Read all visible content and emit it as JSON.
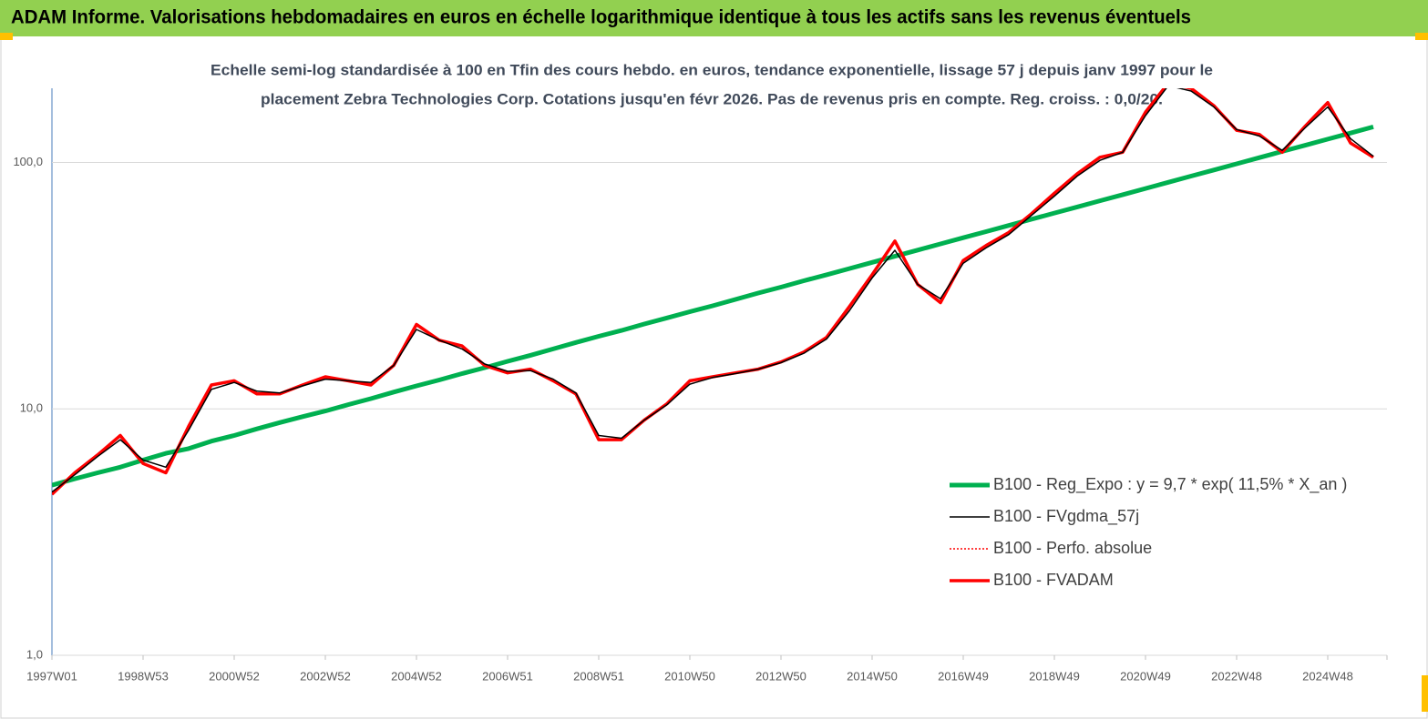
{
  "chart_data": {
    "type": "line",
    "title": "ADAM Informe. Valorisations hebdomadaires en euros en échelle logarithmique identique à tous les actifs sans les revenus éventuels",
    "subtitle": [
      "Echelle semi-log standardisée à 100 en Tfin des cours hebdo. en euros, tendance exponentielle, lissage 57 j depuis janv 1997 pour le",
      "placement Zebra Technologies Corp. Cotations jusqu'en févr 2026. Pas de revenus pris en compte. Reg. croiss. : 0,0/20."
    ],
    "log_scale": true,
    "legend": "lower right",
    "ylim": [
      1,
      200
    ],
    "yticks": [
      {
        "value": 1,
        "label": "1,0"
      },
      {
        "value": 10,
        "label": "10,0"
      },
      {
        "value": 100,
        "label": "100,0"
      }
    ],
    "categories": [
      "1997W01",
      null,
      null,
      null,
      "1998W53",
      null,
      null,
      null,
      "2000W52",
      null,
      null,
      null,
      "2002W52",
      null,
      null,
      null,
      "2004W52",
      null,
      null,
      null,
      "2006W51",
      null,
      null,
      null,
      "2008W51",
      null,
      null,
      null,
      "2010W50",
      null,
      null,
      null,
      "2012W50",
      null,
      null,
      null,
      "2014W50",
      null,
      null,
      null,
      "2016W49",
      null,
      null,
      null,
      "2018W49",
      null,
      null,
      null,
      "2020W49",
      null,
      null,
      null,
      "2022W48",
      null,
      null,
      null,
      "2024W48",
      null,
      null
    ],
    "series": [
      {
        "name": "B100 - Reg_Expo : y = 9,7 * exp( 11,5% *  X_an )",
        "color": "#00b050",
        "width": 5,
        "dash": false,
        "values": [
          4.9,
          5.2,
          5.5,
          5.8,
          6.2,
          6.6,
          6.9,
          7.4,
          7.8,
          8.3,
          8.8,
          9.3,
          9.8,
          10.4,
          11.0,
          11.7,
          12.4,
          13.1,
          13.9,
          14.7,
          15.6,
          16.5,
          17.5,
          18.6,
          19.7,
          20.8,
          22.1,
          23.4,
          24.8,
          26.2,
          27.8,
          29.5,
          31.2,
          33.1,
          35.0,
          37.1,
          39.3,
          41.6,
          44.1,
          46.7,
          49.5,
          52.4,
          55.5,
          58.8,
          62.3,
          66.0,
          69.9,
          74.0,
          78.4,
          83.1,
          88.0,
          93.2,
          98.7,
          104.6,
          110.8,
          117.3,
          124.3,
          131.6,
          139.5
        ]
      },
      {
        "name": "B100 - Perfo. absolue",
        "color": "#ff0000",
        "width": 1.5,
        "dash": true,
        "values": [
          4.5,
          5.5,
          6.5,
          7.8,
          6.0,
          5.5,
          8.5,
          12.5,
          13,
          11.5,
          11.5,
          12.5,
          13.5,
          13,
          12.5,
          15,
          22,
          19,
          18,
          15,
          14,
          14.5,
          13,
          11.5,
          7.5,
          7.5,
          9,
          10.5,
          13,
          13.5,
          14,
          14.5,
          15.5,
          17,
          19.5,
          26,
          35,
          48,
          32,
          27,
          40,
          46,
          52,
          62,
          75,
          90,
          105,
          110,
          160,
          210,
          200,
          170,
          135,
          130,
          110,
          140,
          175,
          120,
          105
        ]
      },
      {
        "name": "B100 - FVADAM",
        "color": "#ff0000",
        "width": 3.5,
        "dash": false,
        "values": [
          4.5,
          5.5,
          6.5,
          7.8,
          6.0,
          5.5,
          8.5,
          12.5,
          13,
          11.5,
          11.5,
          12.5,
          13.5,
          13,
          12.5,
          15,
          22,
          19,
          18,
          15,
          14,
          14.5,
          13,
          11.5,
          7.5,
          7.5,
          9,
          10.5,
          13,
          13.5,
          14,
          14.5,
          15.5,
          17,
          19.5,
          26,
          35,
          48,
          32,
          27,
          40,
          46,
          52,
          62,
          75,
          90,
          105,
          110,
          160,
          210,
          200,
          170,
          135,
          130,
          110,
          140,
          175,
          120,
          105
        ]
      },
      {
        "name": "B100 - FVgdma_57j",
        "color": "#000000",
        "width": 1.5,
        "dash": false,
        "values": [
          4.6,
          5.4,
          6.4,
          7.5,
          6.2,
          5.8,
          8.2,
          12,
          12.8,
          11.8,
          11.6,
          12.4,
          13.2,
          13,
          12.8,
          15,
          21,
          19,
          17.5,
          15.2,
          14.2,
          14.3,
          13.2,
          11.6,
          7.8,
          7.6,
          9,
          10.4,
          12.6,
          13.4,
          13.9,
          14.5,
          15.4,
          16.8,
          19.2,
          25,
          34,
          44,
          32,
          28,
          39,
          45,
          51,
          61,
          73,
          88,
          102,
          110,
          155,
          205,
          195,
          168,
          136,
          128,
          112,
          138,
          168,
          125,
          106
        ]
      }
    ]
  }
}
